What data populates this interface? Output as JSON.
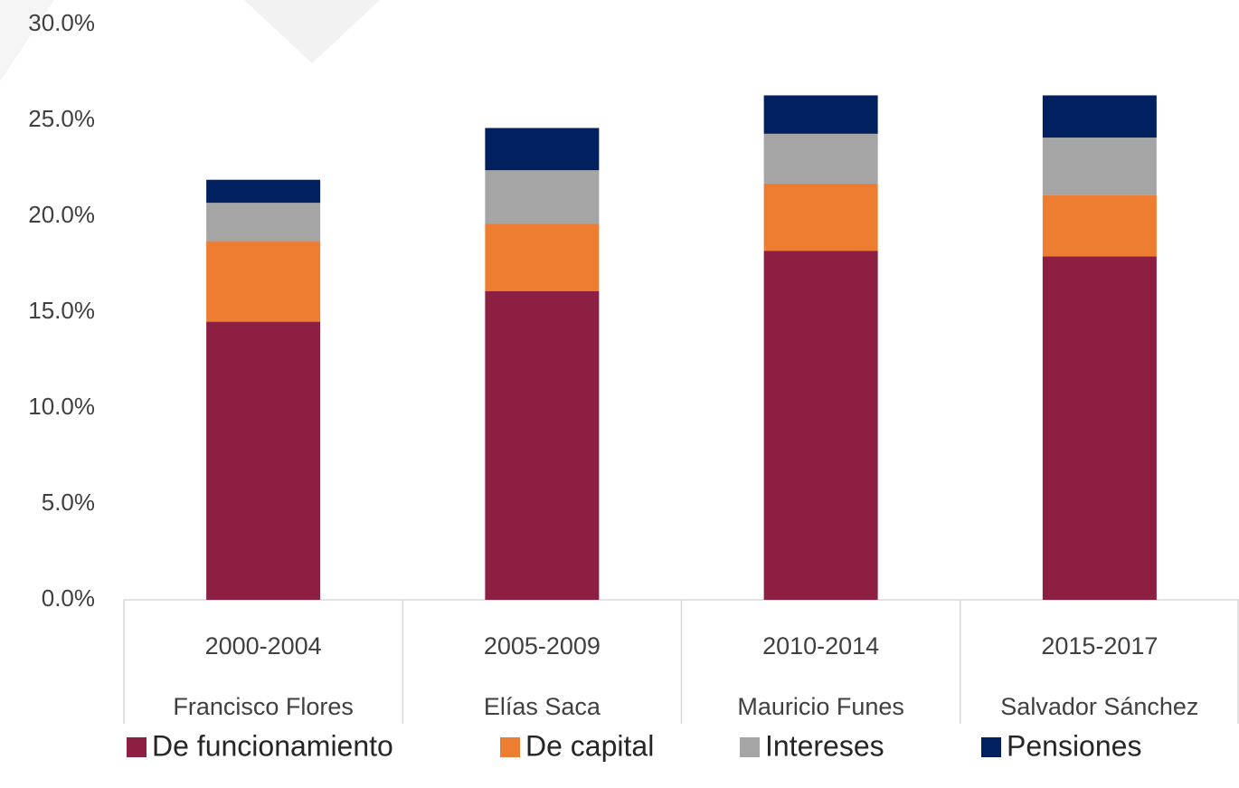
{
  "chart_data": {
    "type": "stacked_bar",
    "categories": [
      "2000-2004",
      "2005-2009",
      "2010-2014",
      "2015-2017"
    ],
    "category_names": [
      "Francisco Flores",
      "Elías Saca",
      "Mauricio Funes",
      "Salvador Sánchez"
    ],
    "series": [
      {
        "name": "De funcionamiento",
        "color": "#8c1f42",
        "values": [
          14.5,
          16.1,
          18.2,
          17.9
        ]
      },
      {
        "name": "De capital",
        "color": "#ed7d31",
        "values": [
          4.2,
          3.5,
          3.5,
          3.2
        ]
      },
      {
        "name": "Intereses",
        "color": "#a5a5a5",
        "values": [
          2.0,
          2.8,
          2.6,
          3.0
        ]
      },
      {
        "name": "Pensiones",
        "color": "#002060",
        "values": [
          1.2,
          2.2,
          2.0,
          2.2
        ]
      }
    ],
    "ylim": [
      0,
      30
    ],
    "yticks": [
      {
        "value": 0,
        "label": "0.0%"
      },
      {
        "value": 5,
        "label": "5.0%"
      },
      {
        "value": 10,
        "label": "10.0%"
      },
      {
        "value": 15,
        "label": "15.0%"
      },
      {
        "value": 20,
        "label": "20.0%"
      },
      {
        "value": 25,
        "label": "25.0%"
      },
      {
        "value": 30,
        "label": "30.0%"
      }
    ],
    "legend": "bottom"
  }
}
